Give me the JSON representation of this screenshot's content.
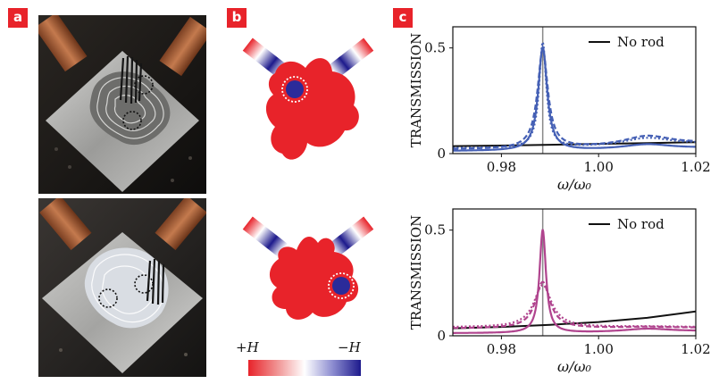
{
  "panels": {
    "a_label": "a",
    "b_label": "b",
    "c_label": "c"
  },
  "colorbar": {
    "left_label": "+H",
    "right_label": "−H",
    "colors": [
      "#e8232a",
      "#ffffff",
      "#1d1a8c"
    ]
  },
  "colors": {
    "accent": "#e8232a",
    "blue_series": "#4560b5",
    "magenta_series": "#b0448e",
    "no_rod": "#111111",
    "resonance_line": "#888888"
  },
  "chart_data": [
    {
      "type": "line",
      "title": "",
      "xlabel": "ω/ω₀",
      "ylabel": "TRANSMISSION",
      "xlim": [
        0.97,
        1.02
      ],
      "ylim": [
        0,
        0.6
      ],
      "xticks": [
        "0.98",
        "1.00",
        "1.02"
      ],
      "yticks": [
        "0",
        "0.5"
      ],
      "legend": "top-right",
      "legend_label": "No rod",
      "resonance_x": 0.9885,
      "series": [
        {
          "name": "No rod",
          "style": "solid",
          "color": "#111111",
          "x": [
            0.97,
            0.98,
            0.99,
            1.0,
            1.01,
            1.02
          ],
          "y": [
            0.035,
            0.038,
            0.042,
            0.046,
            0.05,
            0.054
          ]
        },
        {
          "name": "solid",
          "style": "solid",
          "color": "#4560b5",
          "peak": 0.49,
          "width": 0.0011,
          "base": 0.012,
          "slope": 0.45
        },
        {
          "name": "dashed",
          "style": "dashed",
          "color": "#4560b5",
          "peak": 0.47,
          "width": 0.0013,
          "base": 0.02,
          "slope": 0.9
        },
        {
          "name": "dotted",
          "style": "dotted",
          "color": "#4560b5",
          "peak": 0.5,
          "width": 0.0009,
          "base": 0.025,
          "slope": 0.7
        }
      ]
    },
    {
      "type": "line",
      "title": "",
      "xlabel": "ω/ω₀",
      "ylabel": "TRANSMISSION",
      "xlim": [
        0.97,
        1.02
      ],
      "ylim": [
        0,
        0.6
      ],
      "xticks": [
        "0.98",
        "1.00",
        "1.02"
      ],
      "yticks": [
        "0",
        "0.5"
      ],
      "legend": "top-right",
      "legend_label": "No rod",
      "resonance_x": 0.9885,
      "series": [
        {
          "name": "No rod",
          "style": "solid",
          "color": "#111111",
          "x": [
            0.97,
            0.98,
            0.99,
            1.0,
            1.01,
            1.02
          ],
          "y": [
            0.035,
            0.042,
            0.052,
            0.065,
            0.085,
            0.115
          ]
        },
        {
          "name": "solid",
          "style": "solid",
          "color": "#b0448e",
          "peak": 0.49,
          "width": 0.0008,
          "base": 0.012,
          "slope": 0.3
        },
        {
          "name": "dashed",
          "style": "dashed",
          "color": "#b0448e",
          "peak": 0.22,
          "width": 0.0018,
          "base": 0.035,
          "slope": 0.1
        },
        {
          "name": "dotted",
          "style": "dotted",
          "color": "#b0448e",
          "peak": 0.2,
          "width": 0.0022,
          "base": 0.04,
          "slope": 0.05
        }
      ]
    }
  ]
}
